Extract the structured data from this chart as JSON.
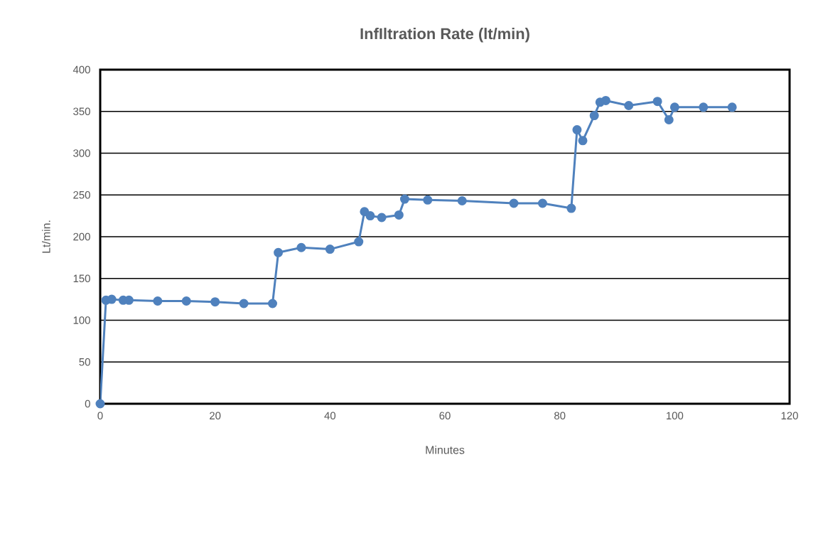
{
  "chart_data": {
    "type": "line",
    "title": "InfIltration Rate (lt/min)",
    "xlabel": "Minutes",
    "ylabel": "Lt/min.",
    "x": [
      0,
      1,
      2,
      4,
      5,
      10,
      15,
      20,
      25,
      30,
      31,
      35,
      40,
      45,
      46,
      47,
      49,
      52,
      53,
      57,
      63,
      72,
      77,
      82,
      83,
      84,
      86,
      87,
      88,
      92,
      97,
      99,
      100,
      105,
      110
    ],
    "values": [
      0,
      124,
      125,
      124,
      124,
      123,
      123,
      122,
      120,
      120,
      181,
      187,
      185,
      194,
      230,
      225,
      223,
      226,
      245,
      244,
      243,
      240,
      240,
      234,
      328,
      315,
      345,
      361,
      363,
      357,
      362,
      340,
      355,
      355,
      355
    ],
    "color": "#4f81bd",
    "marker": "circle",
    "line_style": "solid",
    "grid": "y",
    "xlim": [
      0,
      120
    ],
    "xticks": [
      0,
      20,
      40,
      60,
      80,
      100,
      120
    ],
    "ylim": [
      0,
      400
    ],
    "yticks": [
      0,
      50,
      100,
      150,
      200,
      250,
      300,
      350,
      400
    ]
  }
}
